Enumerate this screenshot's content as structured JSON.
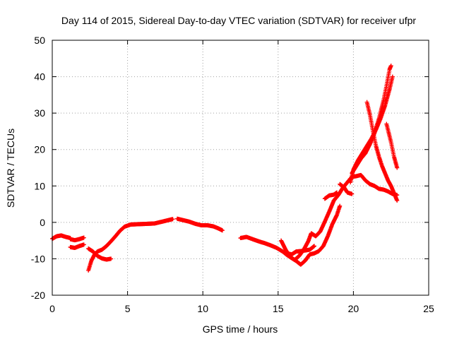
{
  "chart_data": {
    "type": "scatter",
    "title": "Day 114 of 2015, Sidereal Day-to-day VTEC variation (SDTVAR) for receiver ufpr",
    "xlabel": "GPS time / hours",
    "ylabel": "SDTVAR / TECUs",
    "xlim": [
      0,
      25
    ],
    "ylim": [
      -20,
      50
    ],
    "xticks": [
      0,
      5,
      10,
      15,
      20,
      25
    ],
    "yticks": [
      -20,
      -10,
      0,
      10,
      20,
      30,
      40,
      50
    ],
    "xtick_labels": [
      "0",
      "5",
      "10",
      "15",
      "20",
      "25"
    ],
    "ytick_labels": [
      "-20",
      "-10",
      "0",
      "10",
      "20",
      "30",
      "40",
      "50"
    ],
    "grid": true,
    "color": "#ff0000",
    "marker": "plus",
    "series": [
      {
        "points": [
          [
            0.0,
            -4.5
          ],
          [
            0.3,
            -3.8
          ],
          [
            0.6,
            -3.6
          ],
          [
            0.9,
            -4.0
          ],
          [
            1.2,
            -4.3
          ]
        ]
      },
      {
        "points": [
          [
            1.2,
            -4.6
          ],
          [
            1.5,
            -4.9
          ],
          [
            1.8,
            -4.6
          ],
          [
            2.1,
            -4.2
          ]
        ]
      },
      {
        "points": [
          [
            1.2,
            -6.8
          ],
          [
            1.5,
            -7.0
          ],
          [
            1.8,
            -6.5
          ],
          [
            2.1,
            -6.1
          ]
        ]
      },
      {
        "points": [
          [
            2.4,
            -13.2
          ],
          [
            2.6,
            -10.5
          ],
          [
            2.8,
            -8.9
          ],
          [
            3.0,
            -8.0
          ],
          [
            3.3,
            -7.5
          ],
          [
            3.6,
            -6.5
          ],
          [
            3.9,
            -5.2
          ],
          [
            4.2,
            -3.8
          ],
          [
            4.5,
            -2.3
          ],
          [
            4.8,
            -1.2
          ],
          [
            5.2,
            -0.6
          ],
          [
            5.7,
            -0.5
          ],
          [
            6.3,
            -0.4
          ],
          [
            6.8,
            -0.3
          ],
          [
            7.3,
            0.2
          ],
          [
            7.8,
            0.7
          ],
          [
            8.0,
            0.9
          ]
        ]
      },
      {
        "points": [
          [
            2.4,
            -7.2
          ],
          [
            2.7,
            -8.0
          ],
          [
            3.0,
            -9.2
          ],
          [
            3.3,
            -9.9
          ],
          [
            3.6,
            -10.2
          ],
          [
            3.9,
            -10.0
          ]
        ]
      },
      {
        "points": [
          [
            8.3,
            1.0
          ],
          [
            8.7,
            0.6
          ],
          [
            9.1,
            0.2
          ],
          [
            9.5,
            -0.4
          ],
          [
            9.9,
            -0.8
          ],
          [
            10.3,
            -0.8
          ],
          [
            10.7,
            -1.1
          ],
          [
            11.0,
            -1.6
          ],
          [
            11.3,
            -2.2
          ]
        ]
      },
      {
        "points": [
          [
            12.5,
            -4.3
          ],
          [
            12.9,
            -4.0
          ],
          [
            13.3,
            -4.6
          ],
          [
            13.7,
            -5.2
          ],
          [
            14.1,
            -5.7
          ],
          [
            14.5,
            -6.3
          ],
          [
            14.9,
            -7.0
          ],
          [
            15.3,
            -8.0
          ],
          [
            15.6,
            -9.0
          ],
          [
            15.9,
            -9.8
          ],
          [
            16.2,
            -10.6
          ],
          [
            16.5,
            -11.6
          ],
          [
            16.8,
            -10.5
          ],
          [
            17.1,
            -8.8
          ],
          [
            17.4,
            -8.5
          ],
          [
            17.7,
            -7.9
          ],
          [
            18.0,
            -6.5
          ],
          [
            18.3,
            -3.8
          ],
          [
            18.6,
            -0.5
          ],
          [
            18.9,
            2.0
          ],
          [
            19.1,
            4.5
          ]
        ]
      },
      {
        "points": [
          [
            15.2,
            -5.0
          ],
          [
            15.5,
            -7.5
          ],
          [
            15.8,
            -9.5
          ],
          [
            16.1,
            -10.3
          ],
          [
            16.4,
            -9.2
          ],
          [
            16.7,
            -7.5
          ],
          [
            17.0,
            -5.2
          ],
          [
            17.2,
            -3.0
          ],
          [
            17.5,
            -3.8
          ],
          [
            17.8,
            -2.5
          ],
          [
            18.1,
            0.2
          ],
          [
            18.4,
            3.0
          ],
          [
            18.7,
            6.0
          ],
          [
            19.0,
            7.5
          ],
          [
            19.3,
            9.5
          ],
          [
            19.6,
            11.0
          ],
          [
            19.9,
            12.5
          ],
          [
            20.2,
            12.7
          ],
          [
            20.5,
            13.0
          ],
          [
            20.8,
            11.5
          ],
          [
            21.1,
            10.5
          ],
          [
            21.4,
            10.0
          ],
          [
            21.7,
            9.2
          ],
          [
            22.0,
            9.0
          ],
          [
            22.3,
            8.5
          ],
          [
            22.6,
            7.8
          ],
          [
            22.9,
            7.5
          ]
        ]
      },
      {
        "points": [
          [
            15.6,
            -8.5
          ],
          [
            15.9,
            -8.8
          ],
          [
            16.2,
            -8.0
          ],
          [
            16.5,
            -7.9
          ],
          [
            16.8,
            -7.7
          ],
          [
            17.1,
            -7.5
          ],
          [
            17.4,
            -6.5
          ]
        ]
      },
      {
        "points": [
          [
            18.1,
            6.5
          ],
          [
            18.4,
            7.4
          ],
          [
            18.7,
            7.6
          ],
          [
            18.9,
            8.2
          ]
        ]
      },
      {
        "points": [
          [
            19.1,
            10.5
          ],
          [
            19.4,
            9.5
          ],
          [
            19.6,
            8.2
          ],
          [
            19.9,
            7.8
          ]
        ]
      },
      {
        "points": [
          [
            19.8,
            11.0
          ],
          [
            20.0,
            14.5
          ],
          [
            20.3,
            17.0
          ],
          [
            20.6,
            19.0
          ],
          [
            20.9,
            21.0
          ],
          [
            21.2,
            23.0
          ],
          [
            21.5,
            25.5
          ],
          [
            21.8,
            28.5
          ],
          [
            22.1,
            32.0
          ],
          [
            22.4,
            36.5
          ],
          [
            22.6,
            40.0
          ]
        ]
      },
      {
        "points": [
          [
            19.9,
            13.5
          ],
          [
            20.2,
            15.5
          ],
          [
            20.5,
            17.5
          ],
          [
            20.8,
            19.0
          ],
          [
            21.1,
            21.5
          ],
          [
            21.4,
            24.5
          ],
          [
            21.7,
            28.5
          ],
          [
            22.0,
            33.5
          ],
          [
            22.2,
            37.5
          ],
          [
            22.4,
            42.0
          ],
          [
            22.5,
            43.0
          ]
        ]
      },
      {
        "points": [
          [
            20.9,
            33.0
          ],
          [
            21.1,
            29.5
          ],
          [
            21.3,
            25.0
          ],
          [
            21.5,
            21.0
          ],
          [
            21.7,
            18.0
          ],
          [
            21.9,
            15.5
          ],
          [
            22.1,
            13.5
          ],
          [
            22.3,
            11.5
          ],
          [
            22.5,
            10.0
          ],
          [
            22.7,
            8.0
          ],
          [
            22.9,
            6.0
          ]
        ]
      },
      {
        "points": [
          [
            22.2,
            27.0
          ],
          [
            22.5,
            22.0
          ],
          [
            22.7,
            18.0
          ],
          [
            22.9,
            15.0
          ]
        ]
      }
    ]
  }
}
